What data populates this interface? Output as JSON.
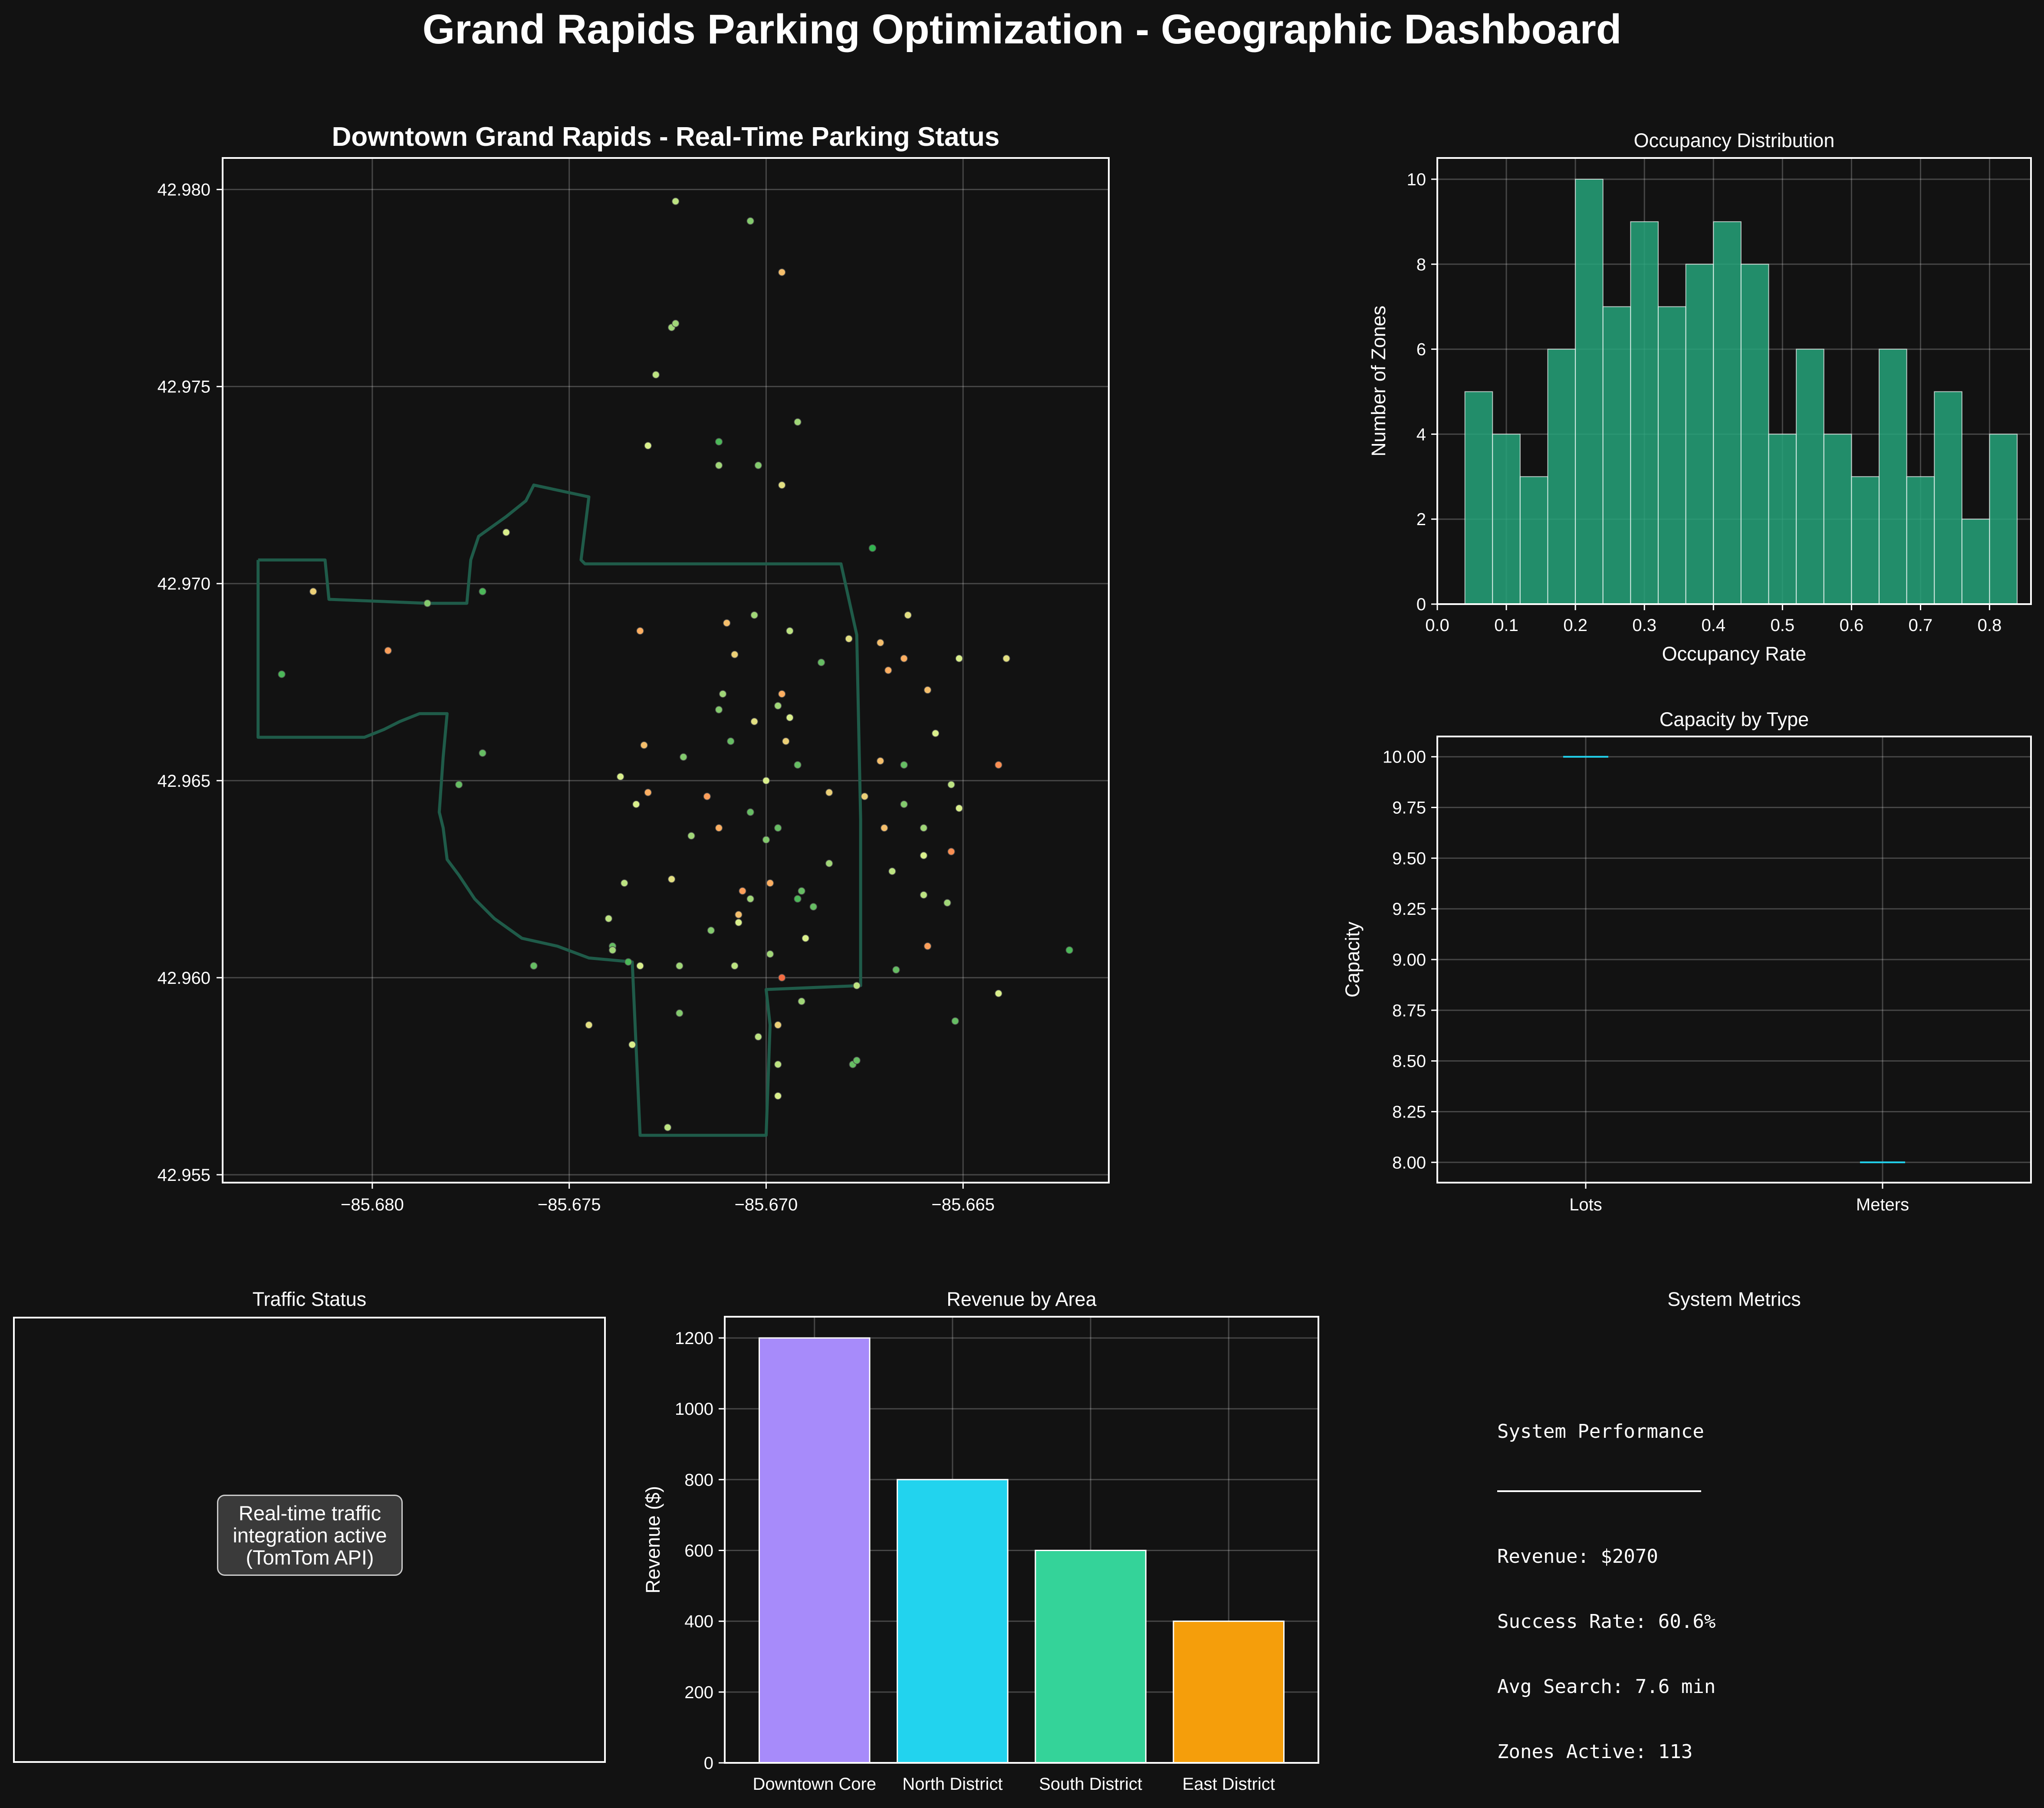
{
  "suptitle": "Grand Rapids Parking Optimization - Geographic Dashboard",
  "colors": {
    "background": "#121212",
    "boundary": "#1f5b49",
    "hist": "#26a37a",
    "box_line": "#22d3ee",
    "bars": [
      "#a78bfa",
      "#22d3ee",
      "#34d399",
      "#f59e0b"
    ]
  },
  "map": {
    "title": "Downtown Grand Rapids - Real-Time Parking Status",
    "xlim": [
      -85.6838,
      -85.6613
    ],
    "ylim": [
      42.9548,
      42.9808
    ],
    "xticks": [
      "−85.680",
      "−85.675",
      "−85.670",
      "−85.665"
    ],
    "yticks": [
      "42.955",
      "42.960",
      "42.965",
      "42.970",
      "42.975",
      "42.980"
    ]
  },
  "chart_data": [
    {
      "type": "scatter",
      "title": "Downtown Grand Rapids - Real-Time Parking Status",
      "xlim": [
        -85.6838,
        -85.6613
      ],
      "ylim": [
        42.9548,
        42.9808
      ],
      "x_ticks": [
        -85.68,
        -85.675,
        -85.67,
        -85.665
      ],
      "y_ticks": [
        42.955,
        42.96,
        42.965,
        42.97,
        42.975,
        42.98
      ],
      "grid": true,
      "boundary": [
        [
          -85.6829,
          42.9706
        ],
        [
          -85.6812,
          42.9706
        ],
        [
          -85.6811,
          42.9696
        ],
        [
          -85.6786,
          42.9695
        ],
        [
          -85.6776,
          42.9695
        ],
        [
          -85.6775,
          42.9706
        ],
        [
          -85.6773,
          42.9712
        ],
        [
          -85.6766,
          42.9717
        ],
        [
          -85.6761,
          42.9721
        ],
        [
          -85.6759,
          42.9725
        ],
        [
          -85.6745,
          42.9722
        ],
        [
          -85.6747,
          42.9706
        ],
        [
          -85.6746,
          42.9705
        ],
        [
          -85.6726,
          42.9705
        ],
        [
          -85.6695,
          42.9705
        ],
        [
          -85.6681,
          42.9705
        ],
        [
          -85.6677,
          42.9687
        ],
        [
          -85.6676,
          42.964
        ],
        [
          -85.6676,
          42.9598
        ],
        [
          -85.67,
          42.9597
        ],
        [
          -85.6699,
          42.9588
        ],
        [
          -85.67,
          42.956
        ],
        [
          -85.6732,
          42.956
        ],
        [
          -85.6734,
          42.9604
        ],
        [
          -85.6745,
          42.9605
        ],
        [
          -85.6753,
          42.9608
        ],
        [
          -85.6762,
          42.961
        ],
        [
          -85.6769,
          42.9615
        ],
        [
          -85.6774,
          42.962
        ],
        [
          -85.6778,
          42.9626
        ],
        [
          -85.6781,
          42.963
        ],
        [
          -85.6782,
          42.9638
        ],
        [
          -85.6783,
          42.9642
        ],
        [
          -85.6782,
          42.9656
        ],
        [
          -85.6781,
          42.9667
        ],
        [
          -85.6788,
          42.9667
        ],
        [
          -85.6793,
          42.9665
        ],
        [
          -85.6797,
          42.9663
        ],
        [
          -85.6802,
          42.9661
        ],
        [
          -85.681,
          42.9661
        ],
        [
          -85.6829,
          42.9661
        ],
        [
          -85.6829,
          42.9706
        ]
      ],
      "points": [
        [
          -85.6723,
          42.9797,
          0.35
        ],
        [
          -85.6704,
          42.9792,
          0.25
        ],
        [
          -85.6696,
          42.9779,
          0.55
        ],
        [
          -85.6724,
          42.9765,
          0.3
        ],
        [
          -85.6723,
          42.9766,
          0.3
        ],
        [
          -85.6728,
          42.9753,
          0.35
        ],
        [
          -85.673,
          42.9735,
          0.4
        ],
        [
          -85.6712,
          42.9736,
          0.15
        ],
        [
          -85.6692,
          42.9741,
          0.3
        ],
        [
          -85.6712,
          42.973,
          0.3
        ],
        [
          -85.6702,
          42.973,
          0.25
        ],
        [
          -85.6696,
          42.9725,
          0.45
        ],
        [
          -85.6766,
          42.9713,
          0.4
        ],
        [
          -85.6673,
          42.9709,
          0.1
        ],
        [
          -85.6815,
          42.9698,
          0.5
        ],
        [
          -85.6786,
          42.9695,
          0.25
        ],
        [
          -85.6772,
          42.9698,
          0.15
        ],
        [
          -85.6703,
          42.9692,
          0.3
        ],
        [
          -85.6664,
          42.9692,
          0.45
        ],
        [
          -85.6732,
          42.9688,
          0.6
        ],
        [
          -85.671,
          42.969,
          0.55
        ],
        [
          -85.6694,
          42.9688,
          0.35
        ],
        [
          -85.6679,
          42.9686,
          0.45
        ],
        [
          -85.6671,
          42.9685,
          0.55
        ],
        [
          -85.6665,
          42.9681,
          0.6
        ],
        [
          -85.6651,
          42.9681,
          0.4
        ],
        [
          -85.6639,
          42.9681,
          0.45
        ],
        [
          -85.6796,
          42.9683,
          0.65
        ],
        [
          -85.6708,
          42.9682,
          0.5
        ],
        [
          -85.6686,
          42.968,
          0.2
        ],
        [
          -85.6823,
          42.9677,
          0.15
        ],
        [
          -85.6669,
          42.9678,
          0.6
        ],
        [
          -85.6696,
          42.9672,
          0.6
        ],
        [
          -85.6659,
          42.9673,
          0.55
        ],
        [
          -85.6711,
          42.9672,
          0.3
        ],
        [
          -85.6697,
          42.9669,
          0.3
        ],
        [
          -85.6712,
          42.9668,
          0.25
        ],
        [
          -85.6703,
          42.9665,
          0.45
        ],
        [
          -85.6694,
          42.9666,
          0.4
        ],
        [
          -85.6657,
          42.9662,
          0.4
        ],
        [
          -85.6709,
          42.966,
          0.2
        ],
        [
          -85.6695,
          42.966,
          0.5
        ],
        [
          -85.6731,
          42.9659,
          0.55
        ],
        [
          -85.6772,
          42.9657,
          0.2
        ],
        [
          -85.6721,
          42.9656,
          0.25
        ],
        [
          -85.6671,
          42.9655,
          0.55
        ],
        [
          -85.6665,
          42.9654,
          0.2
        ],
        [
          -85.6692,
          42.9654,
          0.2
        ],
        [
          -85.6641,
          42.9654,
          0.7
        ],
        [
          -85.6737,
          42.9651,
          0.4
        ],
        [
          -85.6778,
          42.9649,
          0.2
        ],
        [
          -85.67,
          42.965,
          0.4
        ],
        [
          -85.6653,
          42.9649,
          0.35
        ],
        [
          -85.673,
          42.9647,
          0.6
        ],
        [
          -85.6715,
          42.9646,
          0.65
        ],
        [
          -85.6684,
          42.9647,
          0.5
        ],
        [
          -85.6675,
          42.9646,
          0.5
        ],
        [
          -85.6733,
          42.9644,
          0.4
        ],
        [
          -85.6704,
          42.9642,
          0.2
        ],
        [
          -85.6651,
          42.9643,
          0.4
        ],
        [
          -85.6665,
          42.9644,
          0.25
        ],
        [
          -85.6697,
          42.9638,
          0.2
        ],
        [
          -85.6712,
          42.9638,
          0.6
        ],
        [
          -85.667,
          42.9638,
          0.55
        ],
        [
          -85.666,
          42.9638,
          0.3
        ],
        [
          -85.6719,
          42.9636,
          0.3
        ],
        [
          -85.67,
          42.9635,
          0.25
        ],
        [
          -85.6653,
          42.9632,
          0.7
        ],
        [
          -85.666,
          42.9631,
          0.4
        ],
        [
          -85.6684,
          42.9629,
          0.3
        ],
        [
          -85.6668,
          42.9627,
          0.35
        ],
        [
          -85.6736,
          42.9624,
          0.35
        ],
        [
          -85.6724,
          42.9625,
          0.45
        ],
        [
          -85.6706,
          42.9622,
          0.65
        ],
        [
          -85.6699,
          42.9624,
          0.6
        ],
        [
          -85.6691,
          42.9622,
          0.2
        ],
        [
          -85.666,
          42.9621,
          0.35
        ],
        [
          -85.6704,
          42.962,
          0.3
        ],
        [
          -85.6692,
          42.962,
          0.15
        ],
        [
          -85.6654,
          42.9619,
          0.3
        ],
        [
          -85.6688,
          42.9618,
          0.2
        ],
        [
          -85.6707,
          42.9616,
          0.55
        ],
        [
          -85.674,
          42.9615,
          0.35
        ],
        [
          -85.6707,
          42.9614,
          0.4
        ],
        [
          -85.6714,
          42.9612,
          0.25
        ],
        [
          -85.669,
          42.961,
          0.4
        ],
        [
          -85.6659,
          42.9608,
          0.65
        ],
        [
          -85.6739,
          42.9608,
          0.2
        ],
        [
          -85.6739,
          42.9607,
          0.3
        ],
        [
          -85.6699,
          42.9606,
          0.3
        ],
        [
          -85.6735,
          42.9604,
          0.15
        ],
        [
          -85.6732,
          42.9603,
          0.4
        ],
        [
          -85.6722,
          42.9603,
          0.3
        ],
        [
          -85.6708,
          42.9603,
          0.35
        ],
        [
          -85.6667,
          42.9602,
          0.2
        ],
        [
          -85.6759,
          42.9603,
          0.2
        ],
        [
          -85.6696,
          42.96,
          0.8
        ],
        [
          -85.6677,
          42.9598,
          0.35
        ],
        [
          -85.6623,
          42.9607,
          0.15
        ],
        [
          -85.6691,
          42.9594,
          0.3
        ],
        [
          -85.6641,
          42.9596,
          0.4
        ],
        [
          -85.6722,
          42.9591,
          0.25
        ],
        [
          -85.6652,
          42.9589,
          0.2
        ],
        [
          -85.6745,
          42.9588,
          0.45
        ],
        [
          -85.6697,
          42.9588,
          0.5
        ],
        [
          -85.6702,
          42.9585,
          0.35
        ],
        [
          -85.6734,
          42.9583,
          0.4
        ],
        [
          -85.6697,
          42.9578,
          0.35
        ],
        [
          -85.6678,
          42.9578,
          0.2
        ],
        [
          -85.6677,
          42.9579,
          0.2
        ],
        [
          -85.6697,
          42.957,
          0.4
        ],
        [
          -85.6725,
          42.9562,
          0.35
        ]
      ]
    },
    {
      "type": "bar",
      "title": "Occupancy Distribution",
      "xlabel": "Occupancy Rate",
      "ylabel": "Number of Zones",
      "bin_start": 0.04,
      "bin_width": 0.04,
      "values": [
        5,
        4,
        3,
        6,
        10,
        7,
        9,
        7,
        8,
        9,
        8,
        4,
        6,
        4,
        3,
        6,
        3,
        5,
        2,
        4
      ],
      "xlim": [
        0.0,
        0.86
      ],
      "ylim": [
        0,
        10.5
      ],
      "x_ticks": [
        "0.0",
        "0.1",
        "0.2",
        "0.3",
        "0.4",
        "0.5",
        "0.6",
        "0.7",
        "0.8"
      ],
      "y_ticks": [
        "0",
        "2",
        "4",
        "6",
        "8",
        "10"
      ],
      "grid": true
    },
    {
      "type": "box",
      "title": "Capacity by Type",
      "ylabel": "Capacity",
      "categories": [
        "Lots",
        "Meters"
      ],
      "values": [
        10,
        8
      ],
      "ylim": [
        7.9,
        10.1
      ],
      "y_ticks": [
        "8.00",
        "8.25",
        "8.50",
        "8.75",
        "9.00",
        "9.25",
        "9.50",
        "9.75",
        "10.00"
      ],
      "grid": true
    },
    {
      "type": "bar",
      "title": "Revenue by Area",
      "ylabel": "Revenue ($)",
      "categories": [
        "Downtown Core",
        "North District",
        "South District",
        "East District"
      ],
      "values": [
        1200,
        800,
        600,
        400
      ],
      "ylim": [
        0,
        1260
      ],
      "y_ticks": [
        "0",
        "200",
        "400",
        "600",
        "800",
        "1000",
        "1200"
      ],
      "grid": true
    }
  ],
  "traffic": {
    "title": "Traffic Status",
    "note": [
      "Real-time traffic",
      "integration active",
      "(TomTom API)"
    ]
  },
  "metrics": {
    "title": "System Metrics",
    "heading": "System Performance",
    "lines": [
      "Revenue: $2070",
      "Success Rate: 60.6%",
      "Avg Search: 7.6 min",
      "Zones Active: 113"
    ]
  }
}
